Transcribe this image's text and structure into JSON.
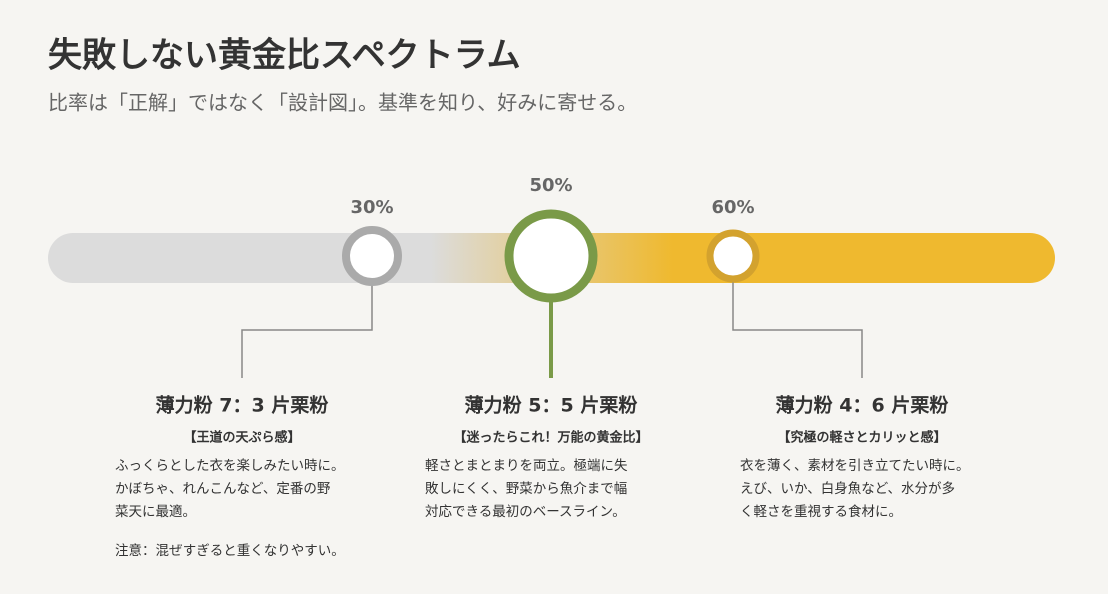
{
  "header": {
    "title": "失敗しない黄金比スペクトラム",
    "subtitle": "比率は「正解」ではなく「設計図」。基準を知り、好みに寄せる。"
  },
  "markers": [
    {
      "label": "30%",
      "heading": "薄力粉 7：3 片栗粉",
      "tag": "【王道の天ぷら感】",
      "lines": [
        "ふっくらとした衣を楽しみたい時に。",
        "かぼちゃ、れんこんなど、定番の野",
        "菜天に最適。"
      ],
      "note": "注意：混ぜすぎると重くなりやすい。"
    },
    {
      "label": "50%",
      "heading": "薄力粉 5：5 片栗粉",
      "tag": "【迷ったらこれ！万能の黄金比】",
      "lines": [
        "軽さとまとまりを両立。極端に失",
        "敗しにくく、野菜から魚介まで幅",
        "対応できる最初のベースライン。"
      ]
    },
    {
      "label": "60%",
      "heading": "薄力粉 4：6 片栗粉",
      "tag": "【究極の軽さとカリッと感】",
      "lines": [
        "衣を薄く、素材を引き立てたい時に。",
        "えび、いか、白身魚など、水分が多",
        "く軽さを重視する食材に。"
      ]
    }
  ]
}
